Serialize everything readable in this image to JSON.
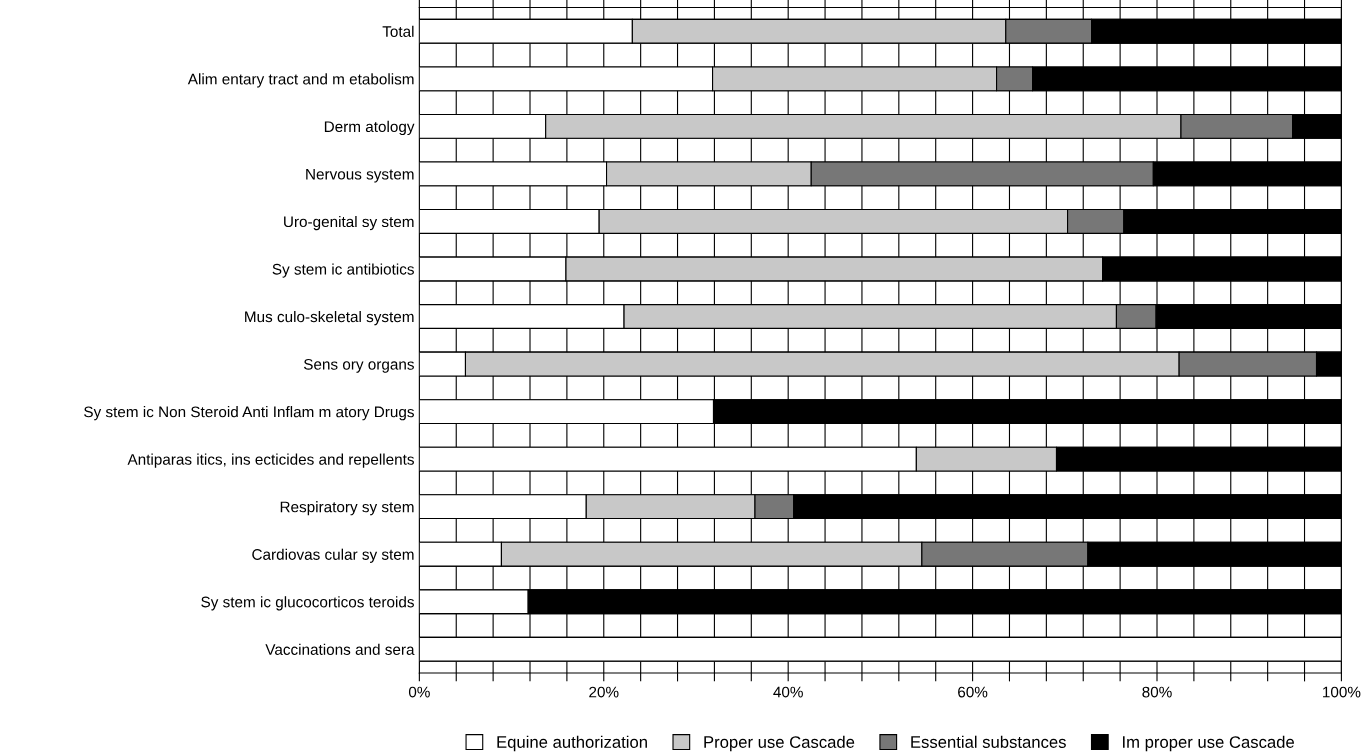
{
  "chart_data": {
    "type": "bar",
    "orientation": "horizontal",
    "stacked": true,
    "categories": [
      "Total",
      "Alim entary tract and m etabolism",
      "Derm atology",
      "Nervous system",
      "Uro-genital sy stem",
      "Sy stem ic antibiotics",
      "Mus culo-skeletal system",
      "Sens ory organs",
      "Sy stem ic Non Steroid Anti Inflam m atory Drugs",
      "Antiparas itics, ins ecticides and repellents",
      "Respiratory sy stem",
      "Cardiovas cular sy stem",
      "Sy stem ic glucocorticos teroids",
      "Vaccinations and sera"
    ],
    "series": [
      {
        "name": "Equine authorization",
        "color": "#ffffff",
        "values": [
          23.1,
          31.8,
          13.7,
          20.3,
          19.5,
          15.9,
          22.2,
          5.0,
          31.9,
          53.9,
          18.1,
          8.9,
          11.8,
          100
        ]
      },
      {
        "name": "Proper use Cascade",
        "color": "#c8c8c8",
        "values": [
          40.5,
          30.8,
          68.9,
          22.2,
          50.8,
          58.2,
          53.4,
          77.4,
          0,
          15.2,
          18.3,
          45.6,
          0,
          0
        ]
      },
      {
        "name": "Essential substances",
        "color": "#777777",
        "values": [
          9.3,
          3.9,
          12.1,
          37.1,
          6.1,
          0,
          4.3,
          14.9,
          0,
          0,
          4.2,
          18.0,
          0,
          0
        ]
      },
      {
        "name": "Im proper use Cascade",
        "color": "#000000",
        "values": [
          27.1,
          33.5,
          5.3,
          20.4,
          23.6,
          25.9,
          20.1,
          2.7,
          68.1,
          30.9,
          59.4,
          27.5,
          88.2,
          0
        ]
      }
    ],
    "xlim": [
      0,
      100
    ],
    "xticks": [
      {
        "value": 0,
        "label": "0%"
      },
      {
        "value": 4,
        "label": null
      },
      {
        "value": 8,
        "label": null
      },
      {
        "value": 12,
        "label": null
      },
      {
        "value": 16,
        "label": null
      },
      {
        "value": 20,
        "label": "20%"
      },
      {
        "value": 24,
        "label": null
      },
      {
        "value": 28,
        "label": null
      },
      {
        "value": 32,
        "label": null
      },
      {
        "value": 36,
        "label": null
      },
      {
        "value": 40,
        "label": "40%"
      },
      {
        "value": 44,
        "label": null
      },
      {
        "value": 48,
        "label": null
      },
      {
        "value": 52,
        "label": null
      },
      {
        "value": 56,
        "label": null
      },
      {
        "value": 60,
        "label": "60%"
      },
      {
        "value": 64,
        "label": null
      },
      {
        "value": 68,
        "label": null
      },
      {
        "value": 72,
        "label": null
      },
      {
        "value": 76,
        "label": null
      },
      {
        "value": 80,
        "label": "80%"
      },
      {
        "value": 84,
        "label": null
      },
      {
        "value": 88,
        "label": null
      },
      {
        "value": 92,
        "label": null
      },
      {
        "value": 96,
        "label": null
      },
      {
        "value": 100,
        "label": "100%"
      }
    ],
    "grid": true,
    "legend": "bottom"
  }
}
